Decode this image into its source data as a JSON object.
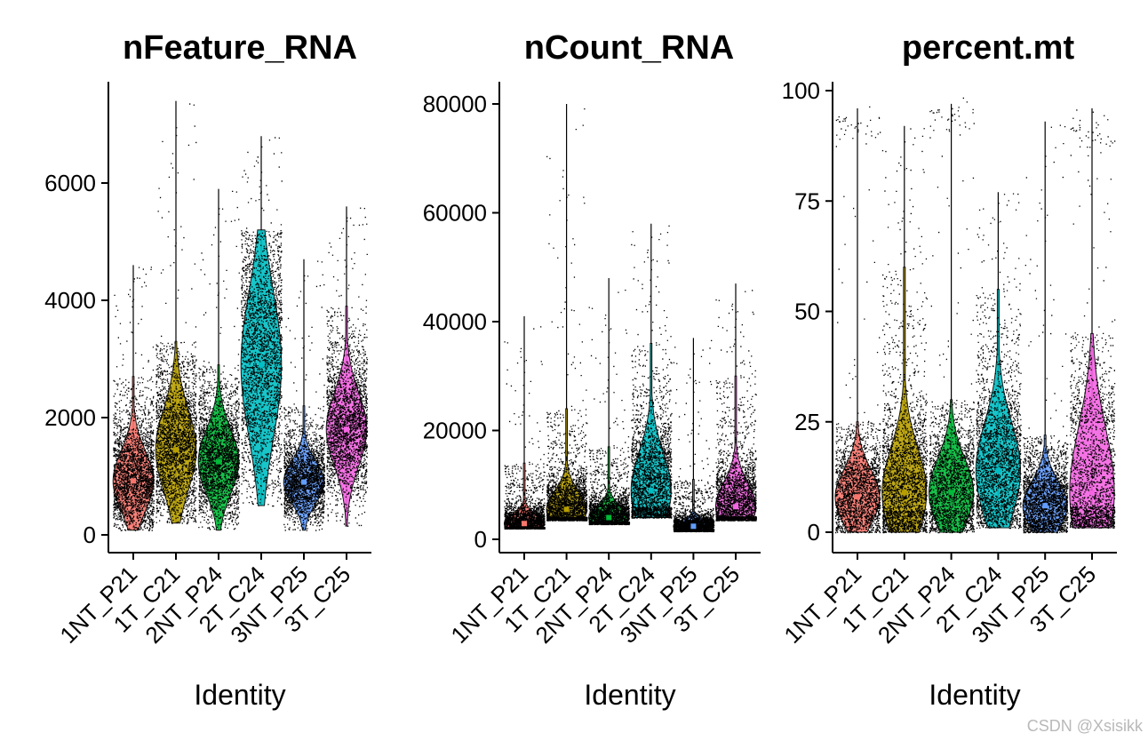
{
  "watermark": "CSDN @Xsisikk",
  "chart_data": [
    {
      "type": "violin",
      "title": "nFeature_RNA",
      "xlabel": "Identity",
      "ylabel": "",
      "categories": [
        "1NT_P21",
        "1T_C21",
        "2NT_P24",
        "2T_C24",
        "3NT_P25",
        "3T_C25"
      ],
      "yticks": [
        0,
        2000,
        4000,
        6000
      ],
      "ylim": [
        -300,
        7800
      ],
      "series": [
        {
          "category": "1NT_P21",
          "color": "#f8766d",
          "min": 80,
          "q1": 700,
          "median": 920,
          "q3": 1350,
          "max": 4600,
          "dense_top": 2700,
          "outlier_top": 4600
        },
        {
          "category": "1T_C21",
          "color": "#b79f00",
          "min": 200,
          "q1": 1100,
          "median": 1450,
          "q3": 2000,
          "max": 7400,
          "dense_top": 3300,
          "outlier_top": 7400
        },
        {
          "category": "2NT_P24",
          "color": "#00ba38",
          "min": 80,
          "q1": 1000,
          "median": 1250,
          "q3": 1700,
          "max": 5900,
          "dense_top": 2900,
          "outlier_top": 5900
        },
        {
          "category": "2T_C24",
          "color": "#00bfc4",
          "min": 500,
          "q1": 2100,
          "median": 2900,
          "q3": 3700,
          "max": 6800,
          "dense_top": 5200,
          "outlier_top": 6800
        },
        {
          "category": "3NT_P25",
          "color": "#619cff",
          "min": 80,
          "q1": 700,
          "median": 900,
          "q3": 1150,
          "max": 4700,
          "dense_top": 2200,
          "outlier_top": 4700
        },
        {
          "category": "3T_C25",
          "color": "#f564e3",
          "min": 150,
          "q1": 1500,
          "median": 1800,
          "q3": 2300,
          "max": 5600,
          "dense_top": 3900,
          "outlier_top": 5600
        }
      ]
    },
    {
      "type": "violin",
      "title": "nCount_RNA",
      "xlabel": "Identity",
      "ylabel": "",
      "categories": [
        "1NT_P21",
        "1T_C21",
        "2NT_P24",
        "2T_C24",
        "3NT_P25",
        "3T_C25"
      ],
      "yticks": [
        0,
        20000,
        40000,
        60000,
        80000
      ],
      "ylim": [
        -2000,
        84000
      ],
      "series": [
        {
          "category": "1NT_P21",
          "color": "#f8766d",
          "min": 2000,
          "q1": 2300,
          "median": 2900,
          "q3": 4500,
          "max": 41000,
          "dense_top": 14000,
          "outlier_top": 41000
        },
        {
          "category": "1T_C21",
          "color": "#b79f00",
          "min": 3500,
          "q1": 4200,
          "median": 5500,
          "q3": 8500,
          "max": 80000,
          "dense_top": 24000,
          "outlier_top": 80000
        },
        {
          "category": "2NT_P24",
          "color": "#00ba38",
          "min": 2800,
          "q1": 3300,
          "median": 4000,
          "q3": 6000,
          "max": 48000,
          "dense_top": 17000,
          "outlier_top": 48000
        },
        {
          "category": "2T_C24",
          "color": "#00bfc4",
          "min": 4000,
          "q1": 6000,
          "median": 9000,
          "q3": 15000,
          "max": 58000,
          "dense_top": 36000,
          "outlier_top": 58000
        },
        {
          "category": "3NT_P25",
          "color": "#619cff",
          "min": 1500,
          "q1": 1900,
          "median": 2400,
          "q3": 3300,
          "max": 37000,
          "dense_top": 11000,
          "outlier_top": 37000
        },
        {
          "category": "3T_C25",
          "color": "#f564e3",
          "min": 3500,
          "q1": 4300,
          "median": 6000,
          "q3": 10000,
          "max": 47000,
          "dense_top": 30000,
          "outlier_top": 47000
        }
      ]
    },
    {
      "type": "violin",
      "title": "percent.mt",
      "xlabel": "Identity",
      "ylabel": "",
      "categories": [
        "1NT_P21",
        "1T_C21",
        "2NT_P24",
        "2T_C24",
        "3NT_P25",
        "3T_C25"
      ],
      "yticks": [
        0,
        25,
        50,
        75,
        100
      ],
      "ylim": [
        -4,
        102
      ],
      "series": [
        {
          "category": "1NT_P21",
          "color": "#f8766d",
          "min": 0,
          "q1": 5,
          "median": 8,
          "q3": 13,
          "max": 96,
          "dense_top": 25,
          "outlier_top": 96,
          "high_cluster": 92
        },
        {
          "category": "1T_C21",
          "color": "#b79f00",
          "min": 0,
          "q1": 5,
          "median": 9,
          "q3": 18,
          "max": 92,
          "dense_top": 60,
          "outlier_top": 92
        },
        {
          "category": "2NT_P24",
          "color": "#00ba38",
          "min": 0,
          "q1": 5,
          "median": 9,
          "q3": 15,
          "max": 97,
          "dense_top": 30,
          "outlier_top": 97,
          "high_cluster": 94
        },
        {
          "category": "2T_C24",
          "color": "#00bfc4",
          "min": 1,
          "q1": 8,
          "median": 14,
          "q3": 22,
          "max": 77,
          "dense_top": 55,
          "outlier_top": 77
        },
        {
          "category": "3NT_P25",
          "color": "#619cff",
          "min": 0,
          "q1": 3,
          "median": 6,
          "q3": 10,
          "max": 93,
          "dense_top": 22,
          "outlier_top": 93
        },
        {
          "category": "3T_C25",
          "color": "#f564e3",
          "min": 1,
          "q1": 6,
          "median": 9,
          "q3": 25,
          "max": 96,
          "dense_top": 45,
          "outlier_top": 96,
          "high_cluster": 90
        }
      ]
    }
  ]
}
